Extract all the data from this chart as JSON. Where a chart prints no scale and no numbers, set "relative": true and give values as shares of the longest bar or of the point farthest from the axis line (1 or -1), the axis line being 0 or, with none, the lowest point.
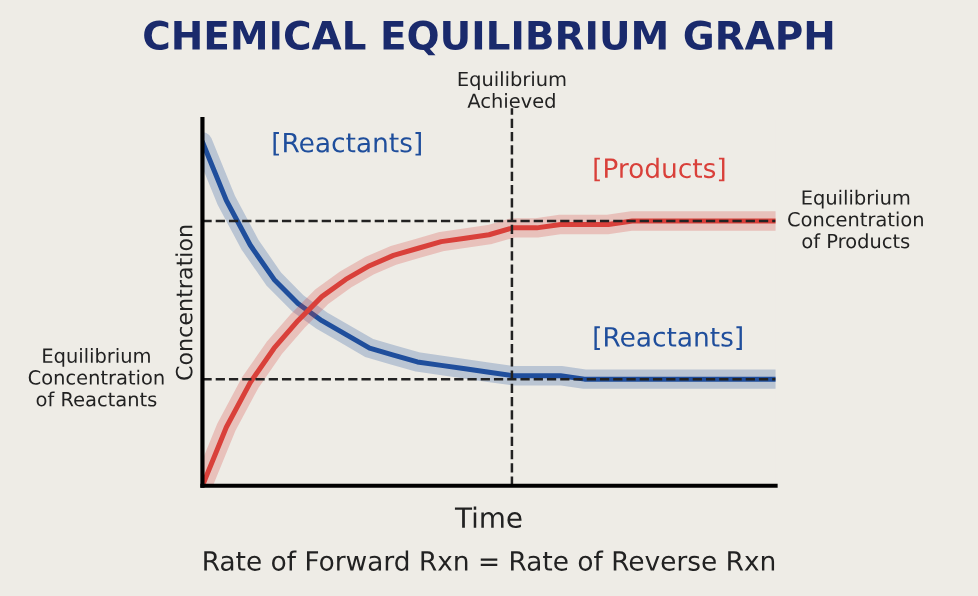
{
  "chart_data": {
    "type": "line",
    "title": "CHEMICAL EQUILIBRIUM GRAPH",
    "xlabel": "Time",
    "ylabel": "Concentration",
    "relative": true,
    "legend": false,
    "grid": false,
    "marker": "none",
    "line_style": "solid",
    "categories": [
      null,
      null,
      null,
      null,
      null,
      null,
      null,
      null,
      null,
      null,
      null,
      null,
      null,
      null,
      null,
      null,
      null,
      null,
      null,
      null,
      null,
      null,
      null,
      null,
      null
    ],
    "series": [
      {
        "name": "[Reactants]",
        "color": "#1f4e9c",
        "values": [
          1.0,
          0.83,
          0.7,
          0.6,
          0.53,
          0.48,
          0.44,
          0.4,
          0.38,
          0.36,
          0.35,
          0.34,
          0.33,
          0.32,
          0.32,
          0.32,
          0.31,
          0.31,
          0.31,
          0.31,
          0.31,
          0.31,
          0.31,
          0.31,
          0.31
        ]
      },
      {
        "name": "[Products]",
        "color": "#d9403a",
        "values": [
          0.0,
          0.17,
          0.3,
          0.4,
          0.48,
          0.55,
          0.6,
          0.64,
          0.67,
          0.69,
          0.71,
          0.72,
          0.73,
          0.75,
          0.75,
          0.76,
          0.76,
          0.76,
          0.77,
          0.77,
          0.77,
          0.77,
          0.77,
          0.77,
          0.77
        ]
      }
    ],
    "ref_lines": [
      {
        "axis": "y",
        "value": 0.77,
        "label": "Equilibrium\nConcentration\nof Products",
        "color": "#222222",
        "line_style": "dashed"
      },
      {
        "axis": "y",
        "value": 0.31,
        "label": "Equilibrium\nConcentration\nof Reactants",
        "color": "#222222",
        "line_style": "dashed"
      }
    ],
    "annotations": [
      "Equilibrium\nAchieved",
      "[Reactants]",
      "Rate of Forward Rxn = Rate of Reverse Rxn"
    ]
  }
}
